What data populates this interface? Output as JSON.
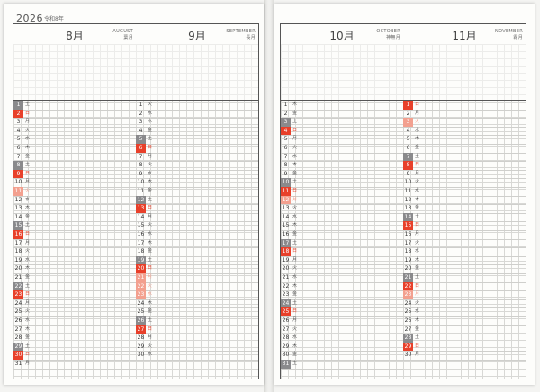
{
  "left_page": {
    "year": "2026",
    "era": "令和8年",
    "months": [
      {
        "name": "8月",
        "eng": "AUGUST",
        "jp_sub": "葉月",
        "days": [
          {
            "d": "1",
            "w": "土",
            "t": "sat"
          },
          {
            "d": "2",
            "w": "日",
            "t": "sun"
          },
          {
            "d": "3",
            "w": "月",
            "t": ""
          },
          {
            "d": "4",
            "w": "火",
            "t": ""
          },
          {
            "d": "5",
            "w": "水",
            "t": ""
          },
          {
            "d": "6",
            "w": "木",
            "t": ""
          },
          {
            "d": "7",
            "w": "金",
            "t": ""
          },
          {
            "d": "8",
            "w": "土",
            "t": "sat"
          },
          {
            "d": "9",
            "w": "日",
            "t": "sun"
          },
          {
            "d": "10",
            "w": "月",
            "t": ""
          },
          {
            "d": "11",
            "w": "火",
            "t": "hol"
          },
          {
            "d": "12",
            "w": "水",
            "t": ""
          },
          {
            "d": "13",
            "w": "木",
            "t": ""
          },
          {
            "d": "14",
            "w": "金",
            "t": ""
          },
          {
            "d": "15",
            "w": "土",
            "t": "sat"
          },
          {
            "d": "16",
            "w": "日",
            "t": "sun"
          },
          {
            "d": "17",
            "w": "月",
            "t": ""
          },
          {
            "d": "18",
            "w": "火",
            "t": ""
          },
          {
            "d": "19",
            "w": "水",
            "t": ""
          },
          {
            "d": "20",
            "w": "木",
            "t": ""
          },
          {
            "d": "21",
            "w": "金",
            "t": ""
          },
          {
            "d": "22",
            "w": "土",
            "t": "sat"
          },
          {
            "d": "23",
            "w": "日",
            "t": "sun"
          },
          {
            "d": "24",
            "w": "月",
            "t": ""
          },
          {
            "d": "25",
            "w": "火",
            "t": ""
          },
          {
            "d": "26",
            "w": "水",
            "t": ""
          },
          {
            "d": "27",
            "w": "木",
            "t": ""
          },
          {
            "d": "28",
            "w": "金",
            "t": ""
          },
          {
            "d": "29",
            "w": "土",
            "t": "sat"
          },
          {
            "d": "30",
            "w": "日",
            "t": "sun"
          },
          {
            "d": "31",
            "w": "月",
            "t": ""
          }
        ]
      },
      {
        "name": "9月",
        "eng": "SEPTEMBER",
        "jp_sub": "長月",
        "days": [
          {
            "d": "1",
            "w": "火",
            "t": ""
          },
          {
            "d": "2",
            "w": "水",
            "t": ""
          },
          {
            "d": "3",
            "w": "木",
            "t": ""
          },
          {
            "d": "4",
            "w": "金",
            "t": ""
          },
          {
            "d": "5",
            "w": "土",
            "t": "sat"
          },
          {
            "d": "6",
            "w": "日",
            "t": "sun"
          },
          {
            "d": "7",
            "w": "月",
            "t": ""
          },
          {
            "d": "8",
            "w": "火",
            "t": ""
          },
          {
            "d": "9",
            "w": "水",
            "t": ""
          },
          {
            "d": "10",
            "w": "木",
            "t": ""
          },
          {
            "d": "11",
            "w": "金",
            "t": ""
          },
          {
            "d": "12",
            "w": "土",
            "t": "sat"
          },
          {
            "d": "13",
            "w": "日",
            "t": "sun"
          },
          {
            "d": "14",
            "w": "月",
            "t": ""
          },
          {
            "d": "15",
            "w": "火",
            "t": ""
          },
          {
            "d": "16",
            "w": "水",
            "t": ""
          },
          {
            "d": "17",
            "w": "木",
            "t": ""
          },
          {
            "d": "18",
            "w": "金",
            "t": ""
          },
          {
            "d": "19",
            "w": "土",
            "t": "sat"
          },
          {
            "d": "20",
            "w": "日",
            "t": "sun"
          },
          {
            "d": "21",
            "w": "月",
            "t": "hol"
          },
          {
            "d": "22",
            "w": "火",
            "t": "hol"
          },
          {
            "d": "23",
            "w": "水",
            "t": "hol"
          },
          {
            "d": "24",
            "w": "木",
            "t": ""
          },
          {
            "d": "25",
            "w": "金",
            "t": ""
          },
          {
            "d": "26",
            "w": "土",
            "t": "sat"
          },
          {
            "d": "27",
            "w": "日",
            "t": "sun"
          },
          {
            "d": "28",
            "w": "月",
            "t": ""
          },
          {
            "d": "29",
            "w": "火",
            "t": ""
          },
          {
            "d": "30",
            "w": "水",
            "t": ""
          }
        ]
      }
    ]
  },
  "right_page": {
    "months": [
      {
        "name": "10月",
        "eng": "OCTOBER",
        "jp_sub": "神無月",
        "days": [
          {
            "d": "1",
            "w": "木",
            "t": ""
          },
          {
            "d": "2",
            "w": "金",
            "t": ""
          },
          {
            "d": "3",
            "w": "土",
            "t": "sat"
          },
          {
            "d": "4",
            "w": "日",
            "t": "sun"
          },
          {
            "d": "5",
            "w": "月",
            "t": ""
          },
          {
            "d": "6",
            "w": "火",
            "t": ""
          },
          {
            "d": "7",
            "w": "水",
            "t": ""
          },
          {
            "d": "8",
            "w": "木",
            "t": ""
          },
          {
            "d": "9",
            "w": "金",
            "t": ""
          },
          {
            "d": "10",
            "w": "土",
            "t": "sat"
          },
          {
            "d": "11",
            "w": "日",
            "t": "sun"
          },
          {
            "d": "12",
            "w": "月",
            "t": "hol"
          },
          {
            "d": "13",
            "w": "火",
            "t": ""
          },
          {
            "d": "14",
            "w": "水",
            "t": ""
          },
          {
            "d": "15",
            "w": "木",
            "t": ""
          },
          {
            "d": "16",
            "w": "金",
            "t": ""
          },
          {
            "d": "17",
            "w": "土",
            "t": "sat"
          },
          {
            "d": "18",
            "w": "日",
            "t": "sun"
          },
          {
            "d": "19",
            "w": "月",
            "t": ""
          },
          {
            "d": "20",
            "w": "火",
            "t": ""
          },
          {
            "d": "21",
            "w": "水",
            "t": ""
          },
          {
            "d": "22",
            "w": "木",
            "t": ""
          },
          {
            "d": "23",
            "w": "金",
            "t": ""
          },
          {
            "d": "24",
            "w": "土",
            "t": "sat"
          },
          {
            "d": "25",
            "w": "日",
            "t": "sun"
          },
          {
            "d": "26",
            "w": "月",
            "t": ""
          },
          {
            "d": "27",
            "w": "火",
            "t": ""
          },
          {
            "d": "28",
            "w": "水",
            "t": ""
          },
          {
            "d": "29",
            "w": "木",
            "t": ""
          },
          {
            "d": "30",
            "w": "金",
            "t": ""
          },
          {
            "d": "31",
            "w": "土",
            "t": "sat"
          }
        ]
      },
      {
        "name": "11月",
        "eng": "NOVEMBER",
        "jp_sub": "霜月",
        "days": [
          {
            "d": "1",
            "w": "日",
            "t": "sun"
          },
          {
            "d": "2",
            "w": "月",
            "t": ""
          },
          {
            "d": "3",
            "w": "火",
            "t": "hol"
          },
          {
            "d": "4",
            "w": "水",
            "t": ""
          },
          {
            "d": "5",
            "w": "木",
            "t": ""
          },
          {
            "d": "6",
            "w": "金",
            "t": ""
          },
          {
            "d": "7",
            "w": "土",
            "t": "sat"
          },
          {
            "d": "8",
            "w": "日",
            "t": "sun"
          },
          {
            "d": "9",
            "w": "月",
            "t": ""
          },
          {
            "d": "10",
            "w": "火",
            "t": ""
          },
          {
            "d": "11",
            "w": "水",
            "t": ""
          },
          {
            "d": "12",
            "w": "木",
            "t": ""
          },
          {
            "d": "13",
            "w": "金",
            "t": ""
          },
          {
            "d": "14",
            "w": "土",
            "t": "sat"
          },
          {
            "d": "15",
            "w": "日",
            "t": "sun"
          },
          {
            "d": "16",
            "w": "月",
            "t": ""
          },
          {
            "d": "17",
            "w": "火",
            "t": ""
          },
          {
            "d": "18",
            "w": "水",
            "t": ""
          },
          {
            "d": "19",
            "w": "木",
            "t": ""
          },
          {
            "d": "20",
            "w": "金",
            "t": ""
          },
          {
            "d": "21",
            "w": "土",
            "t": "sat"
          },
          {
            "d": "22",
            "w": "日",
            "t": "sun"
          },
          {
            "d": "23",
            "w": "月",
            "t": "hol"
          },
          {
            "d": "24",
            "w": "火",
            "t": ""
          },
          {
            "d": "25",
            "w": "水",
            "t": ""
          },
          {
            "d": "26",
            "w": "木",
            "t": ""
          },
          {
            "d": "27",
            "w": "金",
            "t": ""
          },
          {
            "d": "28",
            "w": "土",
            "t": "sat"
          },
          {
            "d": "29",
            "w": "日",
            "t": "sun"
          },
          {
            "d": "30",
            "w": "月",
            "t": ""
          }
        ]
      }
    ]
  },
  "colors": {
    "saturday": "#8a8a8c",
    "sunday": "#e8402a",
    "holiday": "#f3a08f",
    "rule": "#555555"
  }
}
